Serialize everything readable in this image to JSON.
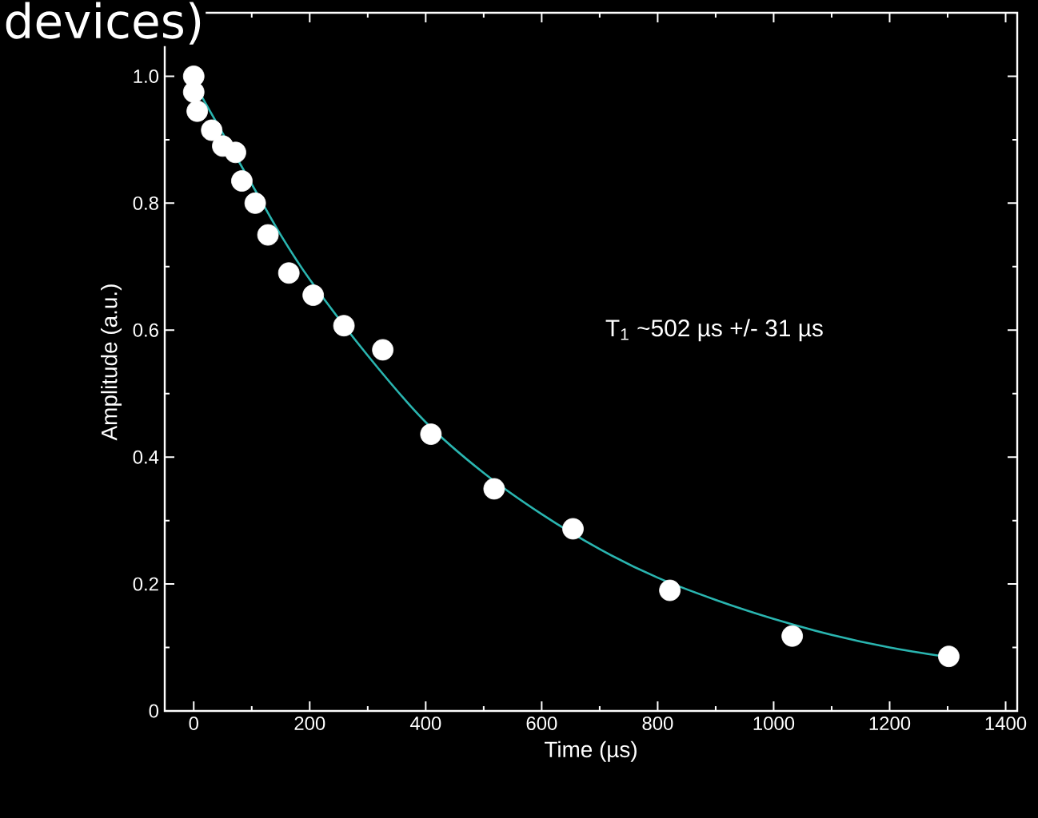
{
  "chart_data": {
    "type": "scatter",
    "title": "devices)",
    "xlabel": "Time (µs)",
    "ylabel": "Amplitude (a.u.)",
    "annotations": [
      "T$_{1}$ ~502 µs +/- 31 µs"
    ],
    "xlim": [
      -50,
      1420
    ],
    "ylim": [
      0,
      1.1
    ],
    "xticks": [
      0,
      200,
      400,
      600,
      800,
      1000,
      1200,
      1400
    ],
    "yticks": [
      {
        "value": 0,
        "label": "0"
      },
      {
        "value": 0.2,
        "label": "0.2"
      },
      {
        "value": 0.4,
        "label": "0.4"
      },
      {
        "value": 0.6,
        "label": "0.6"
      },
      {
        "value": 0.8,
        "label": "0.8"
      },
      {
        "value": 1.0,
        "label": "1.0"
      }
    ],
    "grid": false,
    "series": [
      {
        "marker": "circle",
        "color": "#ffffff",
        "x": [
          0,
          0,
          6,
          31,
          50,
          72,
          83,
          106,
          128,
          164,
          206,
          259,
          326,
          409,
          518,
          654,
          821,
          1032,
          1302
        ],
        "values": [
          1.0,
          0.975,
          0.945,
          0.915,
          0.89,
          0.88,
          0.835,
          0.8,
          0.75,
          0.69,
          0.655,
          0.607,
          0.569,
          0.436,
          0.35,
          0.287,
          0.19,
          0.118,
          0.086
        ]
      },
      {
        "type": "line",
        "marker": "none",
        "color": "#2ab5b0",
        "x": [
          0,
          50,
          100,
          150,
          200,
          300,
          400,
          500,
          600,
          700,
          800,
          900,
          1000,
          1100,
          1200,
          1300
        ],
        "values": [
          0.99,
          0.91,
          0.83,
          0.75,
          0.68,
          0.56,
          0.455,
          0.375,
          0.31,
          0.255,
          0.21,
          0.175,
          0.145,
          0.12,
          0.1,
          0.085
        ]
      }
    ]
  }
}
